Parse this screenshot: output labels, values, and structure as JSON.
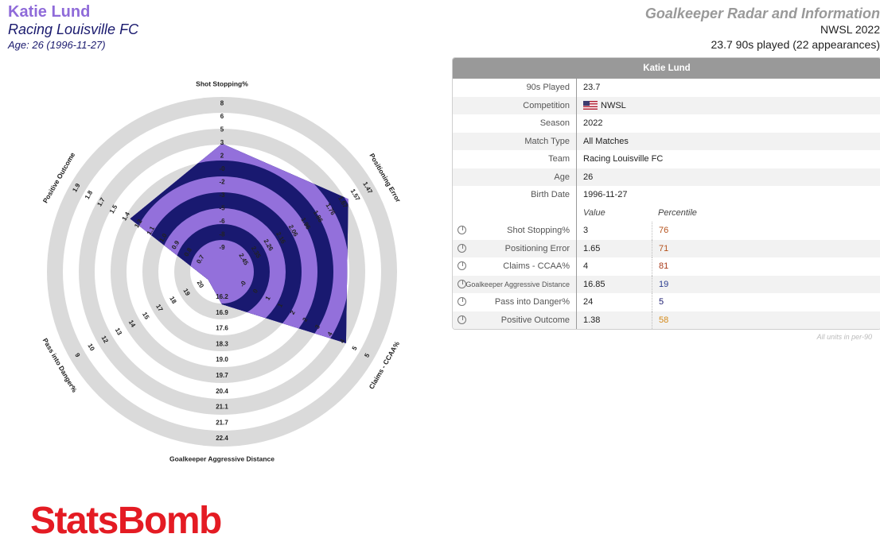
{
  "header": {
    "player_name": "Katie Lund",
    "team": "Racing Louisville FC",
    "age_line": "Age: 26 (1996-11-27)",
    "radar_title": "Goalkeeper Radar and Information",
    "competition_season": "NWSL 2022",
    "played": "23.7 90s played (22 appearances)"
  },
  "table": {
    "title": "Katie Lund",
    "info_rows": [
      {
        "label": "90s Played",
        "value": "23.7"
      },
      {
        "label": "Competition",
        "value": "NWSL",
        "flag": "us-flag"
      },
      {
        "label": "Season",
        "value": "2022"
      },
      {
        "label": "Match Type",
        "value": "All Matches"
      },
      {
        "label": "Team",
        "value": "Racing Louisville FC"
      },
      {
        "label": "Age",
        "value": "26"
      },
      {
        "label": "Birth Date",
        "value": "1996-11-27"
      }
    ],
    "value_header": "Value",
    "percentile_header": "Percentile",
    "metric_rows": [
      {
        "label": "Shot Stopping%",
        "value": "3",
        "percentile": "76",
        "color": "#b5521c"
      },
      {
        "label": "Positioning Error",
        "value": "1.65",
        "percentile": "71",
        "color": "#b5521c"
      },
      {
        "label": "Claims - CCAA%",
        "value": "4",
        "percentile": "81",
        "color": "#a93a1a"
      },
      {
        "label": "Goalkeeper Aggressive Distance",
        "value": "16.85",
        "percentile": "19",
        "color": "#2a3b8f"
      },
      {
        "label": "Pass into Danger%",
        "value": "24",
        "percentile": "5",
        "color": "#1a1a6e"
      },
      {
        "label": "Positive Outcome",
        "value": "1.38",
        "percentile": "58",
        "color": "#d48a1a"
      }
    ],
    "units_note": "All units in per-90"
  },
  "logo_text": "StatsBomb",
  "chart_data": {
    "type": "radar",
    "colors": {
      "band": "#dadada",
      "fill_light": "#9370db",
      "fill_dark": "#191970"
    },
    "axes": [
      {
        "name": "Shot Stopping%",
        "ticks": [
          "-9",
          "-8",
          "-6",
          "-5",
          "-3",
          "-2",
          "-0",
          "2",
          "3",
          "5",
          "6",
          "8"
        ],
        "value": 3
      },
      {
        "name": "Positioning Error",
        "ticks": [
          "2.45",
          "2.35",
          "2.26",
          "2.16",
          "2.06",
          "1.96",
          "1.86",
          "1.76",
          "1.67",
          "1.57",
          "1.47"
        ],
        "value": 1.65
      },
      {
        "name": "Claims - CCAA%",
        "ticks": [
          "-0",
          "0",
          "1",
          "1",
          "2",
          "2",
          "3",
          "4",
          "4",
          "5",
          "5"
        ],
        "value": 4
      },
      {
        "name": "Goalkeeper Aggressive Distance",
        "ticks": [
          "16.2",
          "16.9",
          "17.6",
          "18.3",
          "19.0",
          "19.7",
          "20.4",
          "21.1",
          "21.7",
          "22.4"
        ],
        "value": 16.85
      },
      {
        "name": "Pass into Danger%",
        "ticks": [
          "20",
          "19",
          "18",
          "17",
          "15",
          "14",
          "13",
          "12",
          "10",
          "9"
        ],
        "value": 24
      },
      {
        "name": "Positive Outcome",
        "ticks": [
          "0.7",
          "0.8",
          "0.9",
          "1.0",
          "1.1",
          "1.2",
          "1.4",
          "1.5",
          "1.7",
          "1.8",
          "1.9"
        ],
        "value": 1.38
      }
    ]
  }
}
